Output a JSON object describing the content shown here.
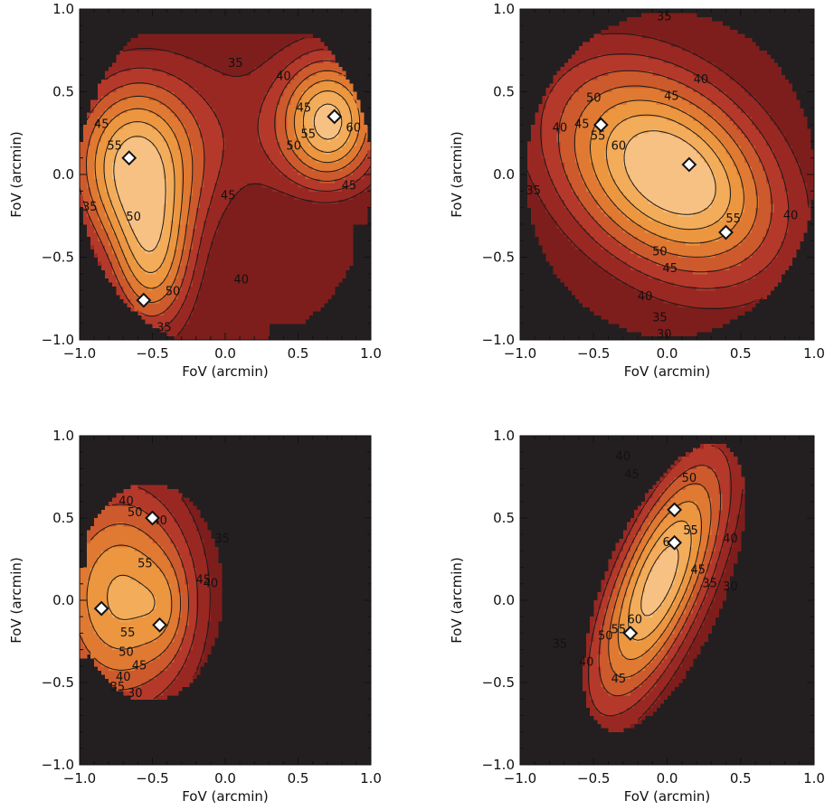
{
  "colors": {
    "background": "#231f20",
    "levels": [
      "#7d1e1c",
      "#992823",
      "#b5392a",
      "#cd5a2c",
      "#e07932",
      "#ec9640",
      "#f2ac5a",
      "#f7c184"
    ],
    "contour_line": "#1a1a1a",
    "marker_fill": "#ffffff",
    "marker_stroke": "#111111"
  },
  "chart_data": [
    {
      "type": "contour",
      "panel": "top-left",
      "xlabel": "FoV (arcmin)",
      "ylabel": "FoV (arcmin)",
      "xlim": [
        -1.0,
        1.0
      ],
      "ylim": [
        -1.0,
        1.0
      ],
      "x_ticks": [
        "−1.0",
        "−0.5",
        "0.0",
        "0.5",
        "1.0"
      ],
      "y_ticks": [
        "−1.0",
        "−0.5",
        "0.0",
        "0.5",
        "1.0"
      ],
      "levels": [
        30,
        35,
        40,
        45,
        50,
        55,
        60
      ],
      "contour_labels": [
        {
          "text": "45",
          "x": -0.85,
          "y": 0.3
        },
        {
          "text": "55",
          "x": -0.76,
          "y": 0.17
        },
        {
          "text": "50",
          "x": -0.63,
          "y": -0.26
        },
        {
          "text": "45",
          "x": 0.54,
          "y": 0.4
        },
        {
          "text": "40",
          "x": 0.4,
          "y": 0.59
        },
        {
          "text": "35",
          "x": 0.07,
          "y": 0.67
        },
        {
          "text": "55",
          "x": 0.57,
          "y": 0.24
        },
        {
          "text": "50",
          "x": 0.47,
          "y": 0.17
        },
        {
          "text": "60",
          "x": 0.88,
          "y": 0.28
        },
        {
          "text": "45",
          "x": 0.02,
          "y": -0.13
        },
        {
          "text": "50",
          "x": -0.36,
          "y": -0.71
        },
        {
          "text": "40",
          "x": 0.11,
          "y": -0.64
        },
        {
          "text": "35",
          "x": -0.42,
          "y": -0.93
        },
        {
          "text": "45",
          "x": 0.85,
          "y": -0.07
        },
        {
          "text": "35",
          "x": -0.93,
          "y": -0.2
        }
      ],
      "markers": [
        {
          "x": -0.66,
          "y": 0.1
        },
        {
          "x": 0.75,
          "y": 0.35
        },
        {
          "x": -0.56,
          "y": -0.76
        }
      ]
    },
    {
      "type": "contour",
      "panel": "top-right",
      "xlabel": "FoV (arcmin)",
      "ylabel": "FoV (arcmin)",
      "xlim": [
        -1.0,
        1.0
      ],
      "ylim": [
        -1.0,
        1.0
      ],
      "x_ticks": [
        "−1.0",
        "−0.5",
        "0.0",
        "0.5",
        "1.0"
      ],
      "y_ticks": [
        "−1.0",
        "−0.5",
        "0.0",
        "0.5",
        "1.0"
      ],
      "levels": [
        30,
        35,
        40,
        45,
        50,
        55,
        60
      ],
      "contour_labels": [
        {
          "text": "35",
          "x": -0.02,
          "y": 0.95
        },
        {
          "text": "40",
          "x": 0.23,
          "y": 0.57
        },
        {
          "text": "45",
          "x": 0.03,
          "y": 0.47
        },
        {
          "text": "50",
          "x": -0.5,
          "y": 0.46
        },
        {
          "text": "45",
          "x": -0.58,
          "y": 0.3
        },
        {
          "text": "40",
          "x": -0.73,
          "y": 0.28
        },
        {
          "text": "55",
          "x": -0.47,
          "y": 0.23
        },
        {
          "text": "60",
          "x": -0.33,
          "y": 0.17
        },
        {
          "text": "35",
          "x": -0.91,
          "y": -0.1
        },
        {
          "text": "55",
          "x": 0.45,
          "y": -0.27
        },
        {
          "text": "40",
          "x": 0.84,
          "y": -0.25
        },
        {
          "text": "50",
          "x": -0.05,
          "y": -0.47
        },
        {
          "text": "45",
          "x": 0.02,
          "y": -0.57
        },
        {
          "text": "40",
          "x": -0.15,
          "y": -0.74
        },
        {
          "text": "35",
          "x": -0.05,
          "y": -0.87
        },
        {
          "text": "30",
          "x": -0.02,
          "y": -0.97
        }
      ],
      "markers": [
        {
          "x": -0.45,
          "y": 0.3
        },
        {
          "x": 0.15,
          "y": 0.06
        },
        {
          "x": 0.4,
          "y": -0.35
        }
      ]
    },
    {
      "type": "contour",
      "panel": "bottom-left",
      "xlabel": "FoV (arcmin)",
      "ylabel": "FoV (arcmin)",
      "xlim": [
        -1.0,
        1.0
      ],
      "ylim": [
        -1.0,
        1.0
      ],
      "x_ticks": [
        "−1.0",
        "−0.5",
        "0.0",
        "0.5",
        "1.0"
      ],
      "y_ticks": [
        "−1.0",
        "−0.5",
        "0.0",
        "0.5",
        "1.0"
      ],
      "levels": [
        30,
        35,
        40,
        45,
        50,
        55,
        60
      ],
      "contour_labels": [
        {
          "text": "40",
          "x": -0.68,
          "y": 0.6
        },
        {
          "text": "50",
          "x": -0.62,
          "y": 0.53
        },
        {
          "text": "40",
          "x": -0.45,
          "y": 0.48
        },
        {
          "text": "55",
          "x": -0.55,
          "y": 0.22
        },
        {
          "text": "45",
          "x": -0.15,
          "y": 0.12
        },
        {
          "text": "40",
          "x": -0.1,
          "y": 0.1
        },
        {
          "text": "35",
          "x": -0.02,
          "y": 0.37
        },
        {
          "text": "55",
          "x": -0.67,
          "y": -0.2
        },
        {
          "text": "50",
          "x": -0.68,
          "y": -0.32
        },
        {
          "text": "45",
          "x": -0.59,
          "y": -0.4
        },
        {
          "text": "40",
          "x": -0.7,
          "y": -0.47
        },
        {
          "text": "35",
          "x": -0.74,
          "y": -0.53
        },
        {
          "text": "30",
          "x": -0.62,
          "y": -0.57
        }
      ],
      "markers": [
        {
          "x": -0.5,
          "y": 0.5
        },
        {
          "x": -0.85,
          "y": -0.05
        },
        {
          "x": -0.45,
          "y": -0.15
        }
      ]
    },
    {
      "type": "contour",
      "panel": "bottom-right",
      "xlabel": "FoV (arcmin)",
      "ylabel": "FoV (arcmin)",
      "xlim": [
        -1.0,
        1.0
      ],
      "ylim": [
        -1.0,
        1.0
      ],
      "x_ticks": [
        "−1.0",
        "−0.5",
        "0.0",
        "0.5",
        "1.0"
      ],
      "y_ticks": [
        "−1.0",
        "−0.5",
        "0.0",
        "0.5",
        "1.0"
      ],
      "levels": [
        30,
        35,
        40,
        45,
        50,
        55,
        60
      ],
      "contour_labels": [
        {
          "text": "40",
          "x": -0.3,
          "y": 0.87
        },
        {
          "text": "45",
          "x": -0.24,
          "y": 0.76
        },
        {
          "text": "50",
          "x": 0.15,
          "y": 0.74
        },
        {
          "text": "60",
          "x": 0.02,
          "y": 0.35
        },
        {
          "text": "55",
          "x": 0.16,
          "y": 0.42
        },
        {
          "text": "40",
          "x": 0.43,
          "y": 0.37
        },
        {
          "text": "45",
          "x": 0.21,
          "y": 0.18
        },
        {
          "text": "30",
          "x": 0.43,
          "y": 0.08
        },
        {
          "text": "35",
          "x": 0.29,
          "y": 0.1
        },
        {
          "text": "60",
          "x": -0.22,
          "y": -0.12
        },
        {
          "text": "55",
          "x": -0.33,
          "y": -0.18
        },
        {
          "text": "50",
          "x": -0.42,
          "y": -0.22
        },
        {
          "text": "35",
          "x": -0.73,
          "y": -0.27
        },
        {
          "text": "40",
          "x": -0.55,
          "y": -0.38
        },
        {
          "text": "45",
          "x": -0.33,
          "y": -0.48
        }
      ],
      "markers": [
        {
          "x": 0.05,
          "y": 0.55
        },
        {
          "x": 0.05,
          "y": 0.35
        },
        {
          "x": -0.25,
          "y": -0.2
        }
      ]
    }
  ]
}
